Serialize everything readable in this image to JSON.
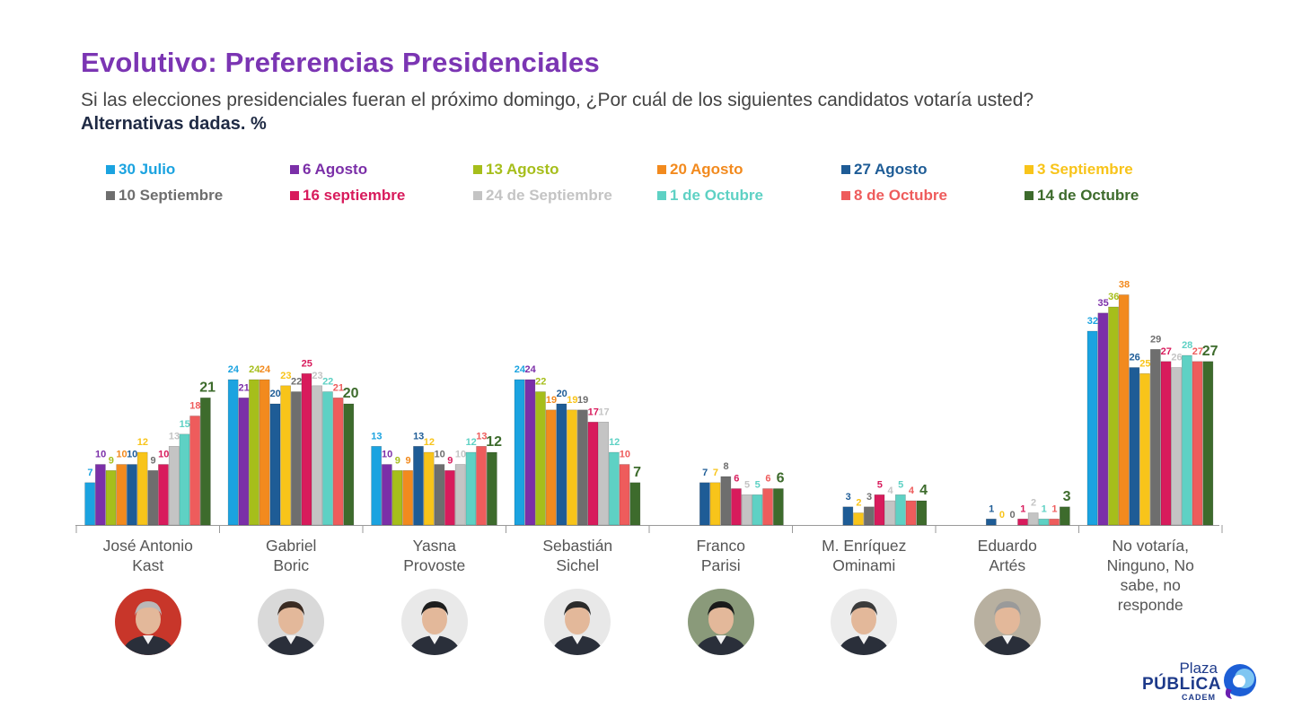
{
  "header": {
    "title": "Evolutivo: Preferencias Presidenciales",
    "question": "Si las elecciones presidenciales fueran el próximo domingo, ¿Por cuál de los siguientes candidatos votaría usted?",
    "alternatives": "Alternativas dadas. %"
  },
  "logo": {
    "line1": "Plaza",
    "line2": "PÚBLiCA",
    "line3": "CADEM"
  },
  "chart_data": {
    "type": "bar",
    "title": "Evolutivo: Preferencias Presidenciales",
    "xlabel": "",
    "ylabel": "",
    "ylim": [
      0,
      40
    ],
    "grid": false,
    "legend_position": "top",
    "categories": [
      "José Antonio\nKast",
      "Gabriel\nBoric",
      "Yasna\nProvoste",
      "Sebastián\nSichel",
      "Franco\nParisi",
      "M. Enríquez\nOminami",
      "Eduardo\nArtés",
      "No votaría,\nNinguno, No\nsabe, no\nresponde"
    ],
    "series": [
      {
        "name": "30 Julio",
        "color": "#1BA3E0",
        "values": [
          7,
          24,
          13,
          24,
          null,
          null,
          null,
          32
        ]
      },
      {
        "name": "6 Agosto",
        "color": "#7B2FA8",
        "values": [
          10,
          21,
          10,
          24,
          null,
          null,
          null,
          35
        ]
      },
      {
        "name": "13 Agosto",
        "color": "#A6BE1B",
        "values": [
          9,
          24,
          9,
          22,
          null,
          null,
          null,
          36
        ]
      },
      {
        "name": "20 Agosto",
        "color": "#F28A1E",
        "values": [
          10,
          24,
          9,
          19,
          null,
          null,
          null,
          38
        ]
      },
      {
        "name": "27 Agosto",
        "color": "#1E5C96",
        "values": [
          10,
          20,
          13,
          20,
          7,
          3,
          1,
          26
        ]
      },
      {
        "name": "3 Septiembre",
        "color": "#F8C41A",
        "values": [
          12,
          23,
          12,
          19,
          7,
          2,
          0,
          25
        ]
      },
      {
        "name": "10 Septiembre",
        "color": "#6E6E6E",
        "values": [
          9,
          22,
          10,
          19,
          8,
          3,
          0,
          29
        ]
      },
      {
        "name": "16 septiembre",
        "color": "#D81B5C",
        "values": [
          10,
          25,
          9,
          17,
          6,
          5,
          1,
          27
        ]
      },
      {
        "name": "24 de Septiembre",
        "color": "#C4C4C4",
        "values": [
          13,
          23,
          10,
          17,
          5,
          4,
          2,
          26
        ]
      },
      {
        "name": "1 de Octubre",
        "color": "#5ED1C4",
        "values": [
          15,
          22,
          12,
          12,
          5,
          5,
          1,
          28
        ]
      },
      {
        "name": "8 de Octubre",
        "color": "#EE5C5C",
        "values": [
          18,
          21,
          13,
          10,
          6,
          4,
          1,
          27
        ]
      },
      {
        "name": "14 de Octubre",
        "color": "#3D6B2C",
        "values": [
          21,
          20,
          12,
          7,
          6,
          4,
          3,
          27
        ]
      }
    ]
  }
}
